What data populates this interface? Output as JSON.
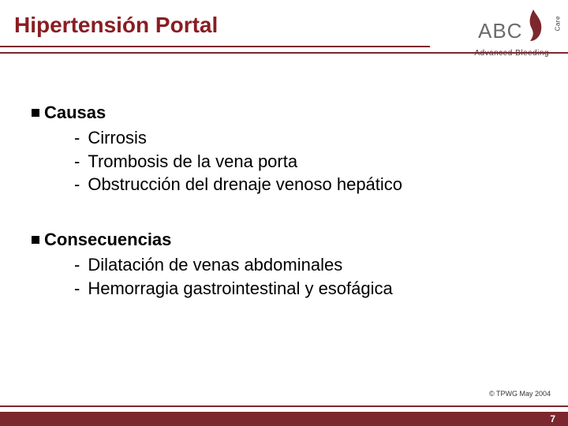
{
  "colors": {
    "title": "#8a1d22",
    "rule": "#7c272e",
    "flame": "#7c272e",
    "footer": "#7c272e",
    "abc_text": "#6b6b6b",
    "tagline": "#3a3a3a",
    "text": "#000000",
    "white": "#ffffff"
  },
  "header": {
    "title": "Hipertensión Portal",
    "logo_text": "ABC",
    "care_text": "Care",
    "tagline": "Advanced Bleeding",
    "rule1_width": 545,
    "rule2_width": 720
  },
  "content": {
    "sections": [
      {
        "heading": "Causas",
        "items": [
          "Cirrosis",
          "Trombosis de la vena porta",
          "Obstrucción del drenaje venoso hepático"
        ]
      },
      {
        "heading": "Consecuencias",
        "items": [
          "Dilatación de venas abdominales",
          "Hemorragia gastrointestinal y esofágica"
        ]
      }
    ]
  },
  "footer": {
    "copyright": "© TPWG May 2004",
    "page_number": "7"
  }
}
